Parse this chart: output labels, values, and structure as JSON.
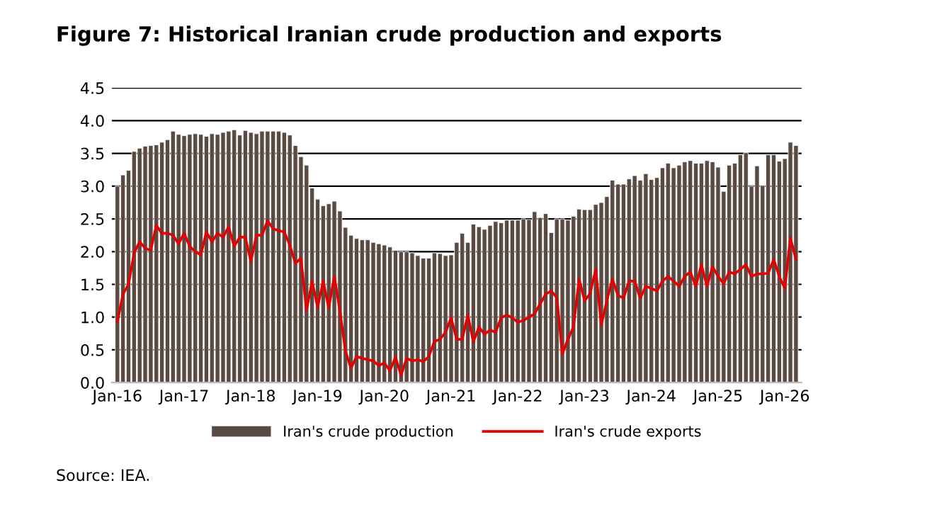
{
  "chart_data": {
    "type": "bar",
    "title": "Figure 7: Historical Iranian crude production and exports",
    "categories": [
      "Jan-16",
      null,
      null,
      null,
      null,
      null,
      null,
      null,
      null,
      null,
      null,
      null,
      "Jan-17",
      null,
      null,
      null,
      null,
      null,
      null,
      null,
      null,
      null,
      null,
      null,
      "Jan-18",
      null,
      null,
      null,
      null,
      null,
      null,
      null,
      null,
      null,
      null,
      null,
      "Jan-19",
      null,
      null,
      null,
      null,
      null,
      null,
      null,
      null,
      null,
      null,
      null,
      "Jan-20",
      null,
      null,
      null,
      null,
      null,
      null,
      null,
      null,
      null,
      null,
      null,
      "Jan-21",
      null,
      null,
      null,
      null,
      null,
      null,
      null,
      null,
      null,
      null,
      null,
      "Jan-22",
      null,
      null,
      null,
      null,
      null,
      null,
      null,
      null,
      null,
      null,
      null,
      "Jan-23",
      null,
      null,
      null,
      null,
      null,
      null,
      null,
      null,
      null,
      null,
      null,
      "Jan-24",
      null,
      null,
      null,
      null,
      null,
      null,
      null,
      null,
      null,
      null,
      null,
      "Jan-25",
      null,
      null,
      null,
      null,
      null,
      null,
      null,
      null,
      null,
      null,
      null,
      "Jan-26",
      null,
      null
    ],
    "series": [
      {
        "name": "Iran's crude production",
        "color": "#5a4a42",
        "values": [
          3.0,
          3.17,
          3.24,
          3.53,
          3.58,
          3.61,
          3.62,
          3.63,
          3.67,
          3.71,
          3.84,
          3.79,
          3.77,
          3.79,
          3.8,
          3.79,
          3.76,
          3.8,
          3.79,
          3.82,
          3.84,
          3.86,
          3.78,
          3.85,
          3.82,
          3.8,
          3.84,
          3.84,
          3.84,
          3.84,
          3.82,
          3.78,
          3.62,
          3.45,
          3.32,
          2.97,
          2.8,
          2.7,
          2.73,
          2.77,
          2.62,
          2.37,
          2.25,
          2.2,
          2.18,
          2.18,
          2.14,
          2.12,
          2.1,
          2.07,
          2.02,
          2.0,
          2.0,
          1.98,
          1.94,
          1.9,
          1.9,
          1.98,
          1.97,
          1.94,
          1.95,
          2.14,
          2.28,
          2.14,
          2.42,
          2.38,
          2.34,
          2.4,
          2.46,
          2.44,
          2.48,
          2.48,
          2.48,
          2.5,
          2.49,
          2.61,
          2.52,
          2.58,
          2.29,
          2.5,
          2.5,
          2.48,
          2.54,
          2.65,
          2.64,
          2.64,
          2.72,
          2.75,
          2.84,
          3.09,
          3.03,
          3.03,
          3.11,
          3.16,
          3.09,
          3.19,
          3.1,
          3.13,
          3.28,
          3.35,
          3.28,
          3.32,
          3.37,
          3.39,
          3.35,
          3.35,
          3.39,
          3.37,
          3.29,
          2.92,
          3.32,
          3.35,
          3.48,
          3.51,
          3.0,
          3.31,
          3.01,
          3.48,
          3.48,
          3.38,
          3.42,
          3.67,
          3.62
        ]
      },
      {
        "name": "Iran's crude exports",
        "type": "line",
        "color": "#e60000",
        "values": [
          0.93,
          1.35,
          1.5,
          1.98,
          2.15,
          2.05,
          2.02,
          2.4,
          2.28,
          2.28,
          2.25,
          2.12,
          2.28,
          2.08,
          2.0,
          1.95,
          2.3,
          2.15,
          2.28,
          2.22,
          2.38,
          2.08,
          2.22,
          2.22,
          1.85,
          2.25,
          2.25,
          2.47,
          2.35,
          2.32,
          2.3,
          2.1,
          1.82,
          1.9,
          1.1,
          1.55,
          1.15,
          1.55,
          1.14,
          1.62,
          1.1,
          0.48,
          0.22,
          0.4,
          0.37,
          0.35,
          0.33,
          0.26,
          0.3,
          0.18,
          0.39,
          0.11,
          0.37,
          0.33,
          0.35,
          0.32,
          0.4,
          0.63,
          0.66,
          0.77,
          0.99,
          0.66,
          0.66,
          1.03,
          0.62,
          0.85,
          0.74,
          0.8,
          0.77,
          0.99,
          1.03,
          0.99,
          0.92,
          0.95,
          1.0,
          1.05,
          1.2,
          1.35,
          1.4,
          1.3,
          0.44,
          0.66,
          0.85,
          1.58,
          1.25,
          1.36,
          1.73,
          0.88,
          1.25,
          1.58,
          1.33,
          1.29,
          1.55,
          1.55,
          1.29,
          1.47,
          1.44,
          1.4,
          1.55,
          1.62,
          1.55,
          1.47,
          1.62,
          1.69,
          1.47,
          1.8,
          1.47,
          1.77,
          1.62,
          1.51,
          1.69,
          1.66,
          1.73,
          1.8,
          1.62,
          1.66,
          1.66,
          1.67,
          1.88,
          1.62,
          1.44,
          2.21,
          1.88
        ]
      }
    ],
    "ylim": [
      0,
      4.5
    ],
    "yticks": [
      {
        "value": 0,
        "label": "0.0"
      },
      {
        "value": 0.5,
        "label": "0.5"
      },
      {
        "value": 1,
        "label": "1.0"
      },
      {
        "value": 1.5,
        "label": "1.5"
      },
      {
        "value": 2,
        "label": "2.0"
      },
      {
        "value": 2.5,
        "label": "2.5"
      },
      {
        "value": 3,
        "label": "3.0"
      },
      {
        "value": 3.5,
        "label": "3.5"
      },
      {
        "value": 4,
        "label": "4.0"
      },
      {
        "value": 4.5,
        "label": "4.5"
      }
    ],
    "grid": "y",
    "legend": "bottom",
    "marker": "none",
    "line_style": "solid",
    "annotations": [
      "Source: IEA."
    ]
  }
}
